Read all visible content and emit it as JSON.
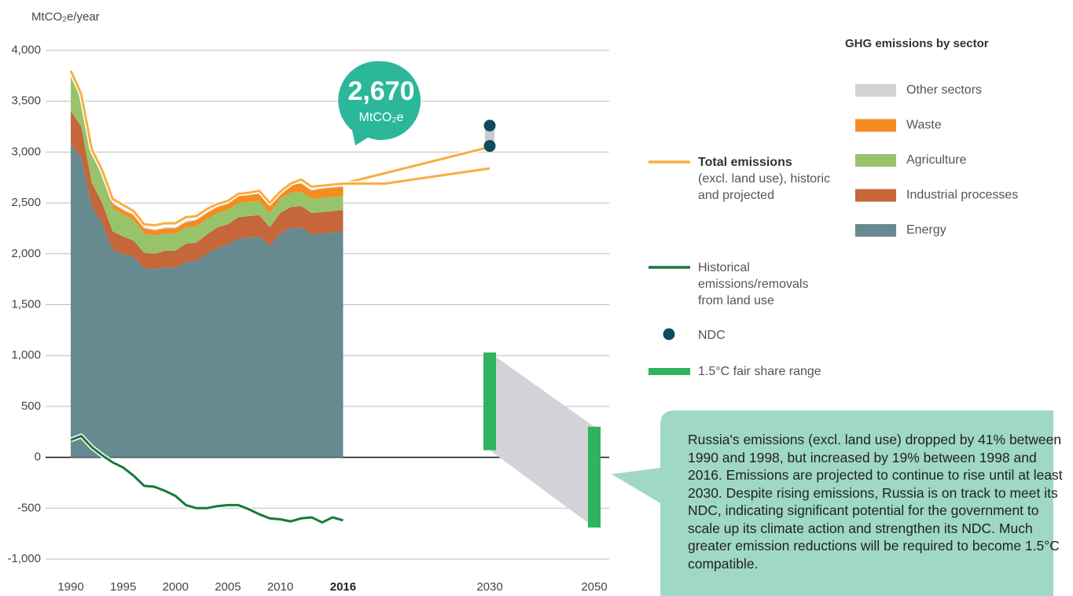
{
  "chart_data": {
    "type": "area",
    "y_label": "MtCO₂e/year",
    "x": [
      1990,
      1991,
      1992,
      1993,
      1994,
      1995,
      1996,
      1997,
      1998,
      1999,
      2000,
      2001,
      2002,
      2003,
      2004,
      2005,
      2006,
      2007,
      2008,
      2009,
      2010,
      2011,
      2012,
      2013,
      2014,
      2015,
      2016
    ],
    "series": [
      {
        "name": "Energy",
        "color": "#668a8f",
        "values": [
          3080,
          2950,
          2470,
          2300,
          2040,
          2000,
          1970,
          1860,
          1850,
          1870,
          1860,
          1920,
          1930,
          2000,
          2060,
          2090,
          2150,
          2160,
          2170,
          2080,
          2200,
          2250,
          2260,
          2190,
          2200,
          2210,
          2220
        ]
      },
      {
        "name": "Industrial processes",
        "color": "#c5663b",
        "values": [
          320,
          300,
          230,
          200,
          180,
          170,
          160,
          150,
          150,
          160,
          170,
          180,
          180,
          190,
          200,
          200,
          210,
          210,
          210,
          180,
          200,
          210,
          210,
          210,
          210,
          210,
          210
        ]
      },
      {
        "name": "Agriculture",
        "color": "#97c46a",
        "values": [
          340,
          310,
          290,
          270,
          230,
          220,
          200,
          190,
          180,
          170,
          170,
          160,
          160,
          150,
          140,
          140,
          140,
          140,
          140,
          140,
          140,
          140,
          140,
          140,
          140,
          140,
          140
        ]
      },
      {
        "name": "Waste",
        "color": "#f68b1f",
        "values": [
          40,
          40,
          40,
          40,
          40,
          40,
          50,
          50,
          50,
          50,
          50,
          50,
          60,
          60,
          60,
          60,
          70,
          70,
          70,
          70,
          70,
          80,
          80,
          80,
          90,
          90,
          90
        ]
      },
      {
        "name": "Other sectors",
        "color": "#d2d3d5",
        "values": [
          10,
          10,
          10,
          10,
          10,
          10,
          10,
          10,
          10,
          10,
          10,
          10,
          10,
          10,
          10,
          10,
          10,
          10,
          10,
          10,
          10,
          10,
          10,
          10,
          10,
          10,
          10
        ]
      }
    ],
    "legend_title": "GHG emissions by sector",
    "total": {
      "name": "Total emissions",
      "note": "(excl. land use), historic and projected",
      "color": "#f9ae40",
      "values": [
        3800,
        3570,
        3030,
        2820,
        2540,
        2480,
        2420,
        2290,
        2280,
        2300,
        2300,
        2360,
        2370,
        2440,
        2490,
        2520,
        2590,
        2600,
        2620,
        2500,
        2610,
        2690,
        2730,
        2660,
        2670,
        2680,
        2690
      ],
      "projections": [
        {
          "x": [
            2016,
            2030
          ],
          "values": [
            2690,
            3050
          ]
        },
        {
          "x": [
            2016,
            2020,
            2030
          ],
          "values": [
            2690,
            2690,
            2840
          ]
        }
      ]
    },
    "land_use": {
      "name": "Historical emissions/removals from land use",
      "color": "#157a3c",
      "values": [
        170,
        210,
        100,
        20,
        -50,
        -100,
        -180,
        -280,
        -290,
        -330,
        -380,
        -470,
        -500,
        -500,
        -480,
        -470,
        -470,
        -510,
        -560,
        -600,
        -610,
        -630,
        -600,
        -590,
        -640,
        -590,
        -620
      ]
    },
    "ndc": {
      "name": "NDC",
      "color": "#0f4b5e",
      "x": 2030,
      "values": [
        3260,
        3060
      ]
    },
    "fair_share": {
      "name": "1.5°C fair share range",
      "color": "#2db45c",
      "x": [
        2030,
        2050
      ],
      "low": [
        70,
        -690
      ],
      "high": [
        1030,
        300
      ]
    },
    "callout": {
      "value": 2670,
      "label": "2,670",
      "unit": "MtCO₂e"
    },
    "annotation": "Russia's emissions (excl. land use) dropped by 41% between 1990 and 1998, but increased by 19% between 1998 and 2016. Emissions are projected to continue to rise until at least 2030.  Despite rising emissions, Russia is on track to meet its NDC, indicating significant potential for the government to scale up its climate action and strengthen its NDC. Much greater emission reductions will be required to become 1.5°C compatible.",
    "xlim": [
      1990,
      2050
    ],
    "ylim": [
      -1000,
      4000
    ],
    "xticks": [
      1990,
      1995,
      2000,
      2005,
      2010,
      2016,
      2030,
      2050
    ],
    "yticks": [
      {
        "value": 4000,
        "label": "4,000"
      },
      {
        "value": 3500,
        "label": "3,500"
      },
      {
        "value": 3000,
        "label": "3,000"
      },
      {
        "value": 2500,
        "label": "2,500"
      },
      {
        "value": 2000,
        "label": "2,000"
      },
      {
        "value": 1500,
        "label": "1,500"
      },
      {
        "value": 1000,
        "label": "1,000"
      },
      500,
      0,
      -500,
      {
        "value": -1000,
        "label": "-1,000"
      }
    ],
    "grid": true
  }
}
